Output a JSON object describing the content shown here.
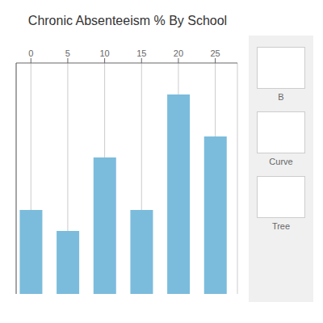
{
  "chart_data": {
    "type": "bar",
    "title": "Chronic Absenteeism % By School",
    "x": [
      0,
      5,
      10,
      15,
      20,
      25
    ],
    "values": [
      8,
      6,
      13,
      8,
      19,
      15
    ],
    "color": "#7bbcdc",
    "xlim": [
      -2,
      28
    ],
    "xticks": [
      0,
      5,
      10,
      15,
      20,
      25
    ],
    "ylim": [
      0,
      22
    ],
    "grid": true,
    "tick_labels": "x",
    "annotations": [
      "B",
      "Curve",
      "Tree"
    ]
  }
}
